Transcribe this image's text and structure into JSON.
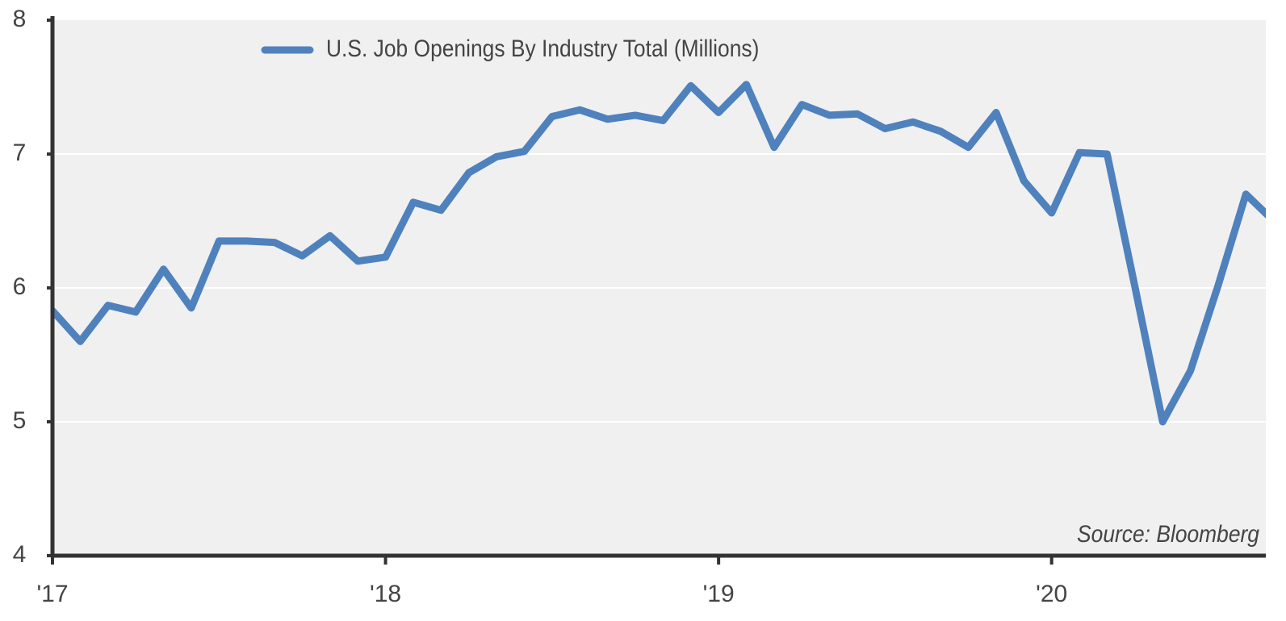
{
  "chart_data": {
    "type": "line",
    "legend_label": "U.S. Job Openings By Industry Total (Millions)",
    "source": "Source: Bloomberg",
    "categories": [
      "'17",
      null,
      null,
      null,
      null,
      null,
      null,
      null,
      null,
      null,
      null,
      null,
      "'18",
      null,
      null,
      null,
      null,
      null,
      null,
      null,
      null,
      null,
      null,
      null,
      "'19",
      null,
      null,
      null,
      null,
      null,
      null,
      null,
      null,
      null,
      null,
      null,
      "'20",
      null,
      null,
      null,
      null,
      null,
      null,
      null,
      null
    ],
    "series": [
      {
        "name": "U.S. Job Openings By Industry Total (Millions)",
        "color": "#4f81bd",
        "values": [
          5.83,
          5.6,
          5.87,
          5.82,
          6.14,
          5.85,
          6.35,
          6.35,
          6.34,
          6.24,
          6.39,
          6.2,
          6.23,
          6.64,
          6.58,
          6.86,
          6.98,
          7.02,
          7.28,
          7.33,
          7.26,
          7.29,
          7.25,
          7.51,
          7.31,
          7.52,
          7.05,
          7.37,
          7.29,
          7.3,
          7.19,
          7.24,
          7.17,
          7.05,
          7.31,
          6.8,
          6.56,
          7.01,
          7.0,
          6.01,
          5.0,
          5.38,
          6.02,
          6.7,
          6.5
        ]
      }
    ],
    "ylim": [
      4,
      8
    ],
    "yticks": [
      4,
      5,
      6,
      7,
      8
    ],
    "grid": true
  }
}
